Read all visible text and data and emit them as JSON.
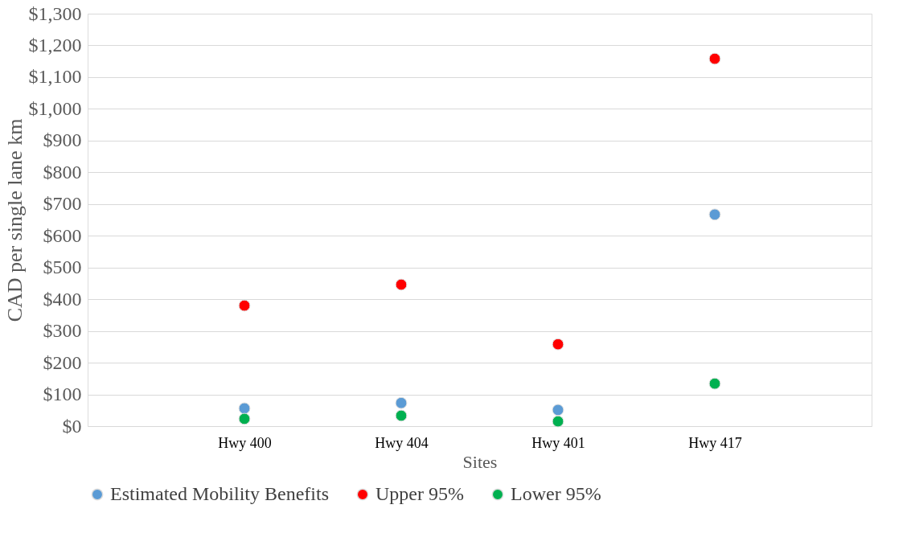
{
  "chart_data": {
    "type": "scatter",
    "xlabel": "Sites",
    "ylabel": "CAD per single lane km",
    "categories": [
      "Hwy 400",
      "Hwy 404",
      "Hwy 401",
      "Hwy 417"
    ],
    "series": [
      {
        "name": "Estimated Mobility Benefits",
        "color": "#5b9bd5",
        "values": [
          56,
          73,
          51,
          667
        ]
      },
      {
        "name": "Upper 95%",
        "color": "#ff0000",
        "values": [
          380,
          446,
          258,
          1158
        ]
      },
      {
        "name": "Lower 95%",
        "color": "#00b050",
        "values": [
          23,
          33,
          15,
          134
        ]
      }
    ],
    "ylim": [
      0,
      1300
    ],
    "yticks": [
      {
        "value": 0,
        "label": "$0"
      },
      {
        "value": 100,
        "label": "$100"
      },
      {
        "value": 200,
        "label": "$200"
      },
      {
        "value": 300,
        "label": "$300"
      },
      {
        "value": 400,
        "label": "$400"
      },
      {
        "value": 500,
        "label": "$500"
      },
      {
        "value": 600,
        "label": "$600"
      },
      {
        "value": 700,
        "label": "$700"
      },
      {
        "value": 800,
        "label": "$800"
      },
      {
        "value": 900,
        "label": "$900"
      },
      {
        "value": 1000,
        "label": "$1,000"
      },
      {
        "value": 1100,
        "label": "$1,100"
      },
      {
        "value": 1200,
        "label": "$1,200"
      },
      {
        "value": 1300,
        "label": "$1,300"
      }
    ],
    "grid": "y",
    "legend": "bottom",
    "marker": "circle"
  }
}
